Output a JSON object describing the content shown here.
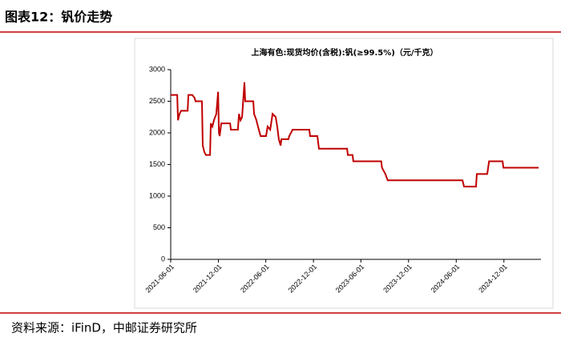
{
  "header": {
    "title": "图表12：钒价走势"
  },
  "chart_data": {
    "type": "line",
    "title": "上海有色:现货均价(含税):钒(≥99.5%)（元/千克）",
    "x": [
      "2021-06-01",
      "2021-06-26",
      "2021-06-29",
      "2021-07-05",
      "2021-07-11",
      "2021-08-05",
      "2021-08-08",
      "2021-08-23",
      "2021-09-01",
      "2021-09-04",
      "2021-09-29",
      "2021-10-02",
      "2021-10-08",
      "2021-10-14",
      "2021-10-30",
      "2021-11-02",
      "2021-11-08",
      "2021-11-14",
      "2021-11-23",
      "2021-11-30",
      "2021-12-03",
      "2021-12-06",
      "2021-12-12",
      "2022-01-15",
      "2022-01-18",
      "2022-02-14",
      "2022-02-18",
      "2022-02-24",
      "2022-03-02",
      "2022-03-11",
      "2022-03-14",
      "2022-04-14",
      "2022-04-17",
      "2022-04-26",
      "2022-05-02",
      "2022-05-12",
      "2022-06-02",
      "2022-06-08",
      "2022-06-18",
      "2022-06-27",
      "2022-07-09",
      "2022-07-15",
      "2022-07-21",
      "2022-07-28",
      "2022-07-31",
      "2022-08-27",
      "2022-08-30",
      "2022-09-12",
      "2022-11-15",
      "2022-11-18",
      "2022-12-16",
      "2022-12-22",
      "2023-04-09",
      "2023-04-12",
      "2023-04-30",
      "2023-05-03",
      "2023-08-18",
      "2023-08-21",
      "2023-09-03",
      "2023-09-12",
      "2024-06-25",
      "2024-07-01",
      "2024-08-16",
      "2024-08-19",
      "2024-09-28",
      "2024-10-05",
      "2024-11-26",
      "2024-11-29",
      "2025-04-13"
    ],
    "series": [
      {
        "name": "钒",
        "color": "#c00000",
        "values": [
          2600,
          2600,
          2200,
          2300,
          2350,
          2350,
          2600,
          2600,
          2550,
          2500,
          2500,
          1800,
          1700,
          1650,
          1650,
          2150,
          2100,
          2200,
          2300,
          2650,
          2000,
          1950,
          2150,
          2150,
          2050,
          2050,
          2300,
          2200,
          2250,
          2800,
          2500,
          2500,
          2300,
          2200,
          2100,
          1950,
          1950,
          2100,
          2050,
          2300,
          2250,
          2100,
          1900,
          1800,
          1900,
          1900,
          1950,
          2050,
          2050,
          1950,
          1950,
          1750,
          1750,
          1650,
          1650,
          1550,
          1550,
          1450,
          1350,
          1250,
          1250,
          1150,
          1150,
          1350,
          1350,
          1550,
          1550,
          1450,
          1450
        ]
      }
    ],
    "xlim": [
      "2021-06-01",
      "2025-04-13"
    ],
    "xticks": [
      "2021-06-01",
      "2021-12-01",
      "2022-06-01",
      "2022-12-01",
      "2023-06-01",
      "2023-12-01",
      "2024-06-01",
      "2024-12-01"
    ],
    "ylim": [
      0,
      3000
    ],
    "yticks": [
      0,
      500,
      1000,
      1500,
      2000,
      2500,
      3000
    ],
    "grid": false
  },
  "footer": {
    "source": "资料来源：iFinD，中邮证券研究所"
  }
}
